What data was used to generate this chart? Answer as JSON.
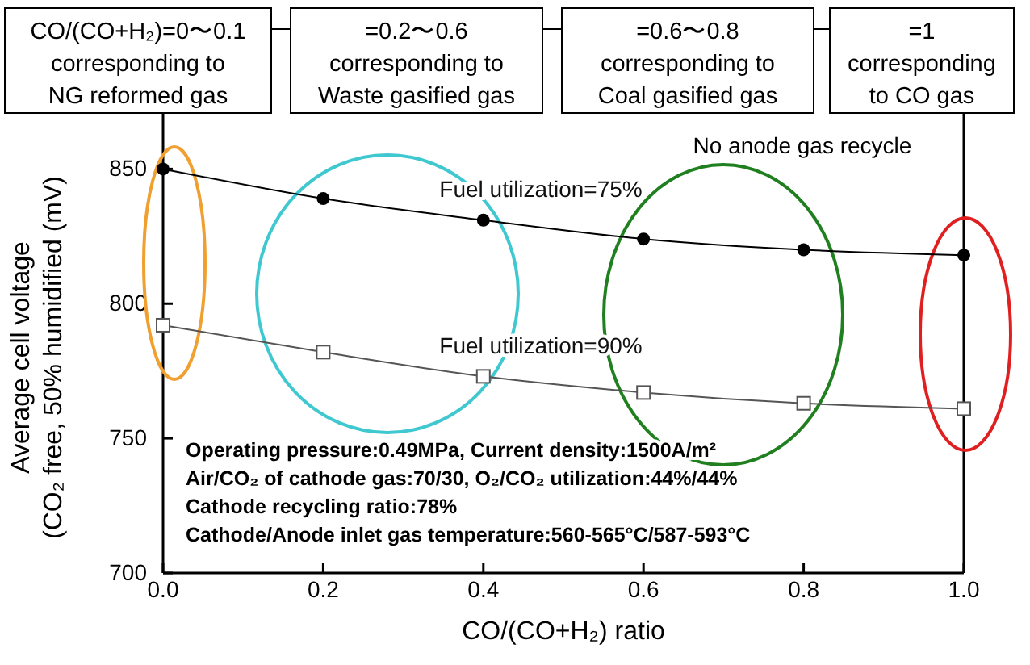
{
  "chart_data": {
    "type": "line",
    "xlabel": "CO/(CO+H₂) ratio",
    "ylabel": "Average cell voltage\n(CO₂ free, 50% humidified (mV)",
    "x": [
      0,
      0.2,
      0.4,
      0.6,
      0.8,
      1.0
    ],
    "series": [
      {
        "name": "Fuel utilization=75%",
        "color": "#000000",
        "marker": "circle",
        "values": [
          850,
          839,
          831,
          824,
          820,
          818
        ]
      },
      {
        "name": "Fuel utilization=90%",
        "color": "#555555",
        "marker": "square",
        "values": [
          792,
          782,
          773,
          767,
          763,
          761
        ]
      }
    ],
    "xlim": [
      0,
      1
    ],
    "xticks": [
      {
        "value": 0,
        "label": "0.0"
      },
      0.2,
      0.4,
      0.6,
      0.8,
      {
        "value": 1,
        "label": "1.0"
      }
    ],
    "ylim": [
      700,
      860
    ],
    "yticks": [
      700,
      750,
      800,
      850
    ],
    "grid": false,
    "line_style": "solid",
    "annotations": [
      "CO/(CO+H₂)=0〜0.1\ncorresponding to\nNG reformed gas",
      "=0.2〜0.6\ncorresponding to\nWaste gasified gas",
      "=0.6〜0.8\ncorresponding to\nCoal gasified gas",
      "=1\ncorresponding\nto CO gas",
      "No anode gas recycle",
      "Operating pressure:0.49MPa, Current density:1500A/m²\nAir/CO₂ of cathode gas:70/30, O₂/CO₂ utilization:44%/44%\nCathode recycling ratio:78%\nCathode/Anode inlet gas temperature:560-565°C/587-593°C"
    ]
  }
}
